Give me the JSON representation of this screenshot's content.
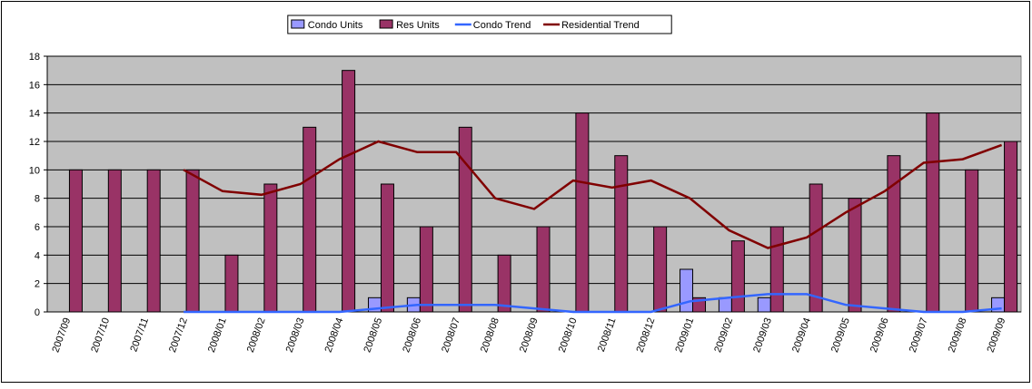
{
  "chart_data": {
    "type": "bar",
    "categories": [
      "2007/09",
      "2007/10",
      "2007/11",
      "2007/12",
      "2008/01",
      "2008/02",
      "2008/03",
      "2008/04",
      "2008/05",
      "2008/06",
      "2008/07",
      "2008/08",
      "2008/09",
      "2008/10",
      "2008/11",
      "2008/12",
      "2009/01",
      "2009/02",
      "2009/03",
      "2009/04",
      "2009/05",
      "2009/06",
      "2009/07",
      "2009/08",
      "2009/09"
    ],
    "series": [
      {
        "name": "Condo Units",
        "type": "bar",
        "color": "#9999ff",
        "values": [
          0,
          0,
          0,
          0,
          0,
          0,
          0,
          0,
          1,
          1,
          0,
          0,
          0,
          0,
          0,
          0,
          3,
          1,
          1,
          0,
          0,
          0,
          0,
          0,
          1
        ]
      },
      {
        "name": "Res Units",
        "type": "bar",
        "color": "#993366",
        "values": [
          10,
          10,
          10,
          10,
          4,
          9,
          13,
          17,
          9,
          6,
          13,
          4,
          6,
          14,
          11,
          6,
          1,
          5,
          6,
          9,
          8,
          11,
          14,
          10,
          12
        ]
      },
      {
        "name": "Condo Trend",
        "type": "line",
        "color": "#3366ff",
        "values": [
          null,
          null,
          null,
          0,
          0,
          0,
          0,
          0,
          0.25,
          0.5,
          0.5,
          0.5,
          0.25,
          0,
          0,
          0,
          0.75,
          1,
          1.25,
          1.25,
          0.5,
          0.25,
          0,
          0,
          0.25
        ]
      },
      {
        "name": "Residential Trend",
        "type": "line",
        "color": "#800000",
        "values": [
          null,
          null,
          null,
          10,
          8.5,
          8.25,
          9,
          10.75,
          12,
          11.25,
          11.25,
          8,
          7.25,
          9.25,
          8.75,
          9.25,
          8,
          5.75,
          4.5,
          5.25,
          7,
          8.5,
          10.5,
          10.75,
          11.75
        ]
      }
    ],
    "ylim": [
      0,
      18
    ],
    "yticks": [
      0,
      2,
      4,
      6,
      8,
      10,
      12,
      14,
      16,
      18
    ],
    "grid": true,
    "plot_background": "#c0c0c0"
  }
}
